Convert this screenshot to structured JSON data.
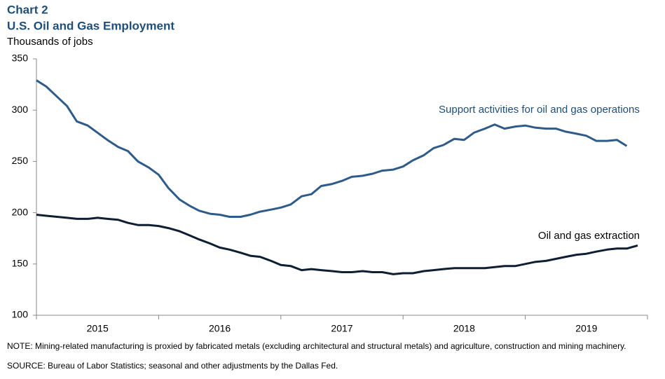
{
  "chart_data": {
    "type": "line",
    "title": "Chart 2",
    "subtitle": "U.S. Oil and Gas Employment",
    "y_label": "Thousands  of jobs",
    "note": "NOTE: Mining-related manufacturing is proxied by fabricated metals (excluding architectural and structural metals) and agriculture, construction and mining machinery.",
    "source": "SOURCE: Bureau of Labor Statistics; seasonal and other adjustments by the Dallas Fed.",
    "x": [
      2015.0,
      2015.08,
      2015.17,
      2015.25,
      2015.33,
      2015.42,
      2015.5,
      2015.58,
      2015.67,
      2015.75,
      2015.83,
      2015.92,
      2016.0,
      2016.08,
      2016.17,
      2016.25,
      2016.33,
      2016.42,
      2016.5,
      2016.58,
      2016.67,
      2016.75,
      2016.83,
      2016.92,
      2017.0,
      2017.08,
      2017.17,
      2017.25,
      2017.33,
      2017.42,
      2017.5,
      2017.58,
      2017.67,
      2017.75,
      2017.83,
      2017.92,
      2018.0,
      2018.08,
      2018.17,
      2018.25,
      2018.33,
      2018.42,
      2018.5,
      2018.58,
      2018.67,
      2018.75,
      2018.83,
      2018.92,
      2019.0,
      2019.08,
      2019.17,
      2019.25,
      2019.33,
      2019.42,
      2019.5,
      2019.58,
      2019.67,
      2019.75,
      2019.83,
      2019.92
    ],
    "series": [
      {
        "name": "Support activities for oil and gas operations",
        "color": "#2e5b8a",
        "values": [
          329,
          323,
          313,
          304,
          289,
          285,
          278,
          271,
          264,
          260,
          250,
          244,
          237,
          224,
          213,
          207,
          202,
          199,
          198,
          196,
          196,
          198,
          201,
          203,
          205,
          208,
          216,
          218,
          226,
          228,
          231,
          235,
          236,
          238,
          241,
          242,
          245,
          251,
          256,
          263,
          266,
          272,
          271,
          278,
          282,
          286,
          282,
          284,
          285,
          283,
          282,
          282,
          279,
          277,
          275,
          270,
          270,
          271,
          265,
          null
        ]
      },
      {
        "name": "Oil and gas extraction",
        "color": "#0e1e33",
        "values": [
          198,
          197,
          196,
          195,
          194,
          194,
          195,
          194,
          193,
          190,
          188,
          188,
          187,
          185,
          182,
          178,
          174,
          170,
          166,
          164,
          161,
          158,
          157,
          153,
          149,
          148,
          144,
          145,
          144,
          143,
          142,
          142,
          143,
          142,
          142,
          140,
          141,
          141,
          143,
          144,
          145,
          146,
          146,
          146,
          146,
          147,
          148,
          148,
          150,
          152,
          153,
          155,
          157,
          159,
          160,
          162,
          164,
          165,
          165,
          168
        ]
      }
    ],
    "xlim": [
      2015,
      2020
    ],
    "xticks": [
      2015,
      2016,
      2017,
      2018,
      2019
    ],
    "ylim": [
      100,
      350
    ],
    "yticks": [
      100,
      150,
      200,
      250,
      300,
      350
    ],
    "grid": false
  }
}
